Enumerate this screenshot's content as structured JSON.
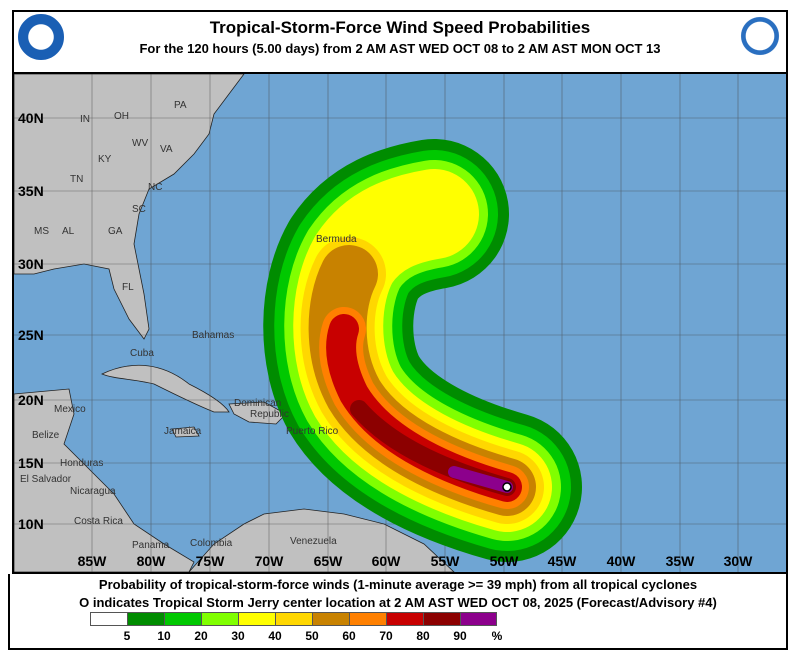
{
  "header": {
    "title": "Tropical-Storm-Force Wind Speed Probabilities",
    "subtitle": "For the 120 hours (5.00 days) from 2 AM AST WED OCT 08 to 2 AM AST MON OCT 13",
    "left_logo": "NOAA",
    "right_logo": "NATIONAL WEATHER SERVICE"
  },
  "map": {
    "lat_labels": [
      "40N",
      "35N",
      "30N",
      "25N",
      "20N",
      "15N",
      "10N"
    ],
    "lon_labels": [
      "85W",
      "80W",
      "75W",
      "70W",
      "65W",
      "60W",
      "55W",
      "50W",
      "45W",
      "40W",
      "35W",
      "30W"
    ],
    "place_labels": {
      "in": "IN",
      "oh": "OH",
      "pa": "PA",
      "wv": "WV",
      "va": "VA",
      "ky": "KY",
      "tn": "TN",
      "nc": "NC",
      "sc": "SC",
      "ms": "MS",
      "al": "AL",
      "ga": "GA",
      "fl": "FL",
      "bermuda": "Bermuda",
      "bahamas": "Bahamas",
      "cuba": "Cuba",
      "mexico": "Mexico",
      "belize": "Belize",
      "jamaica": "Jamaica",
      "dominican": "Dominican",
      "republic": "Republic",
      "puerto_rico": "Puerto Rico",
      "honduras": "Honduras",
      "el_salvador": "El Salvador",
      "nicaragua": "Nicaragua",
      "costa_rica": "Costa Rica",
      "panama": "Panama",
      "colombia": "Colombia",
      "venezuela": "Venezuela"
    },
    "storm_center": {
      "name": "Tropical Storm Jerry",
      "lat": 13.0,
      "lon": -49.9
    },
    "ocean_color": "#6fa5d3",
    "land_color": "#c0c0c0"
  },
  "footer": {
    "line1": "Probability of tropical-storm-force winds (1-minute average >= 39 mph) from all tropical cyclones",
    "line2": "O indicates Tropical Storm Jerry center location at 2 AM AST WED OCT 08, 2025 (Forecast/Advisory #4)"
  },
  "legend": {
    "colors": [
      "#ffffff",
      "#008c00",
      "#00c800",
      "#80ff00",
      "#ffff00",
      "#ffd700",
      "#c88200",
      "#ff8000",
      "#c80000",
      "#8c0000",
      "#8c008c"
    ],
    "ticks": [
      "5",
      "10",
      "20",
      "30",
      "40",
      "50",
      "60",
      "70",
      "80",
      "90"
    ],
    "unit": "%"
  }
}
